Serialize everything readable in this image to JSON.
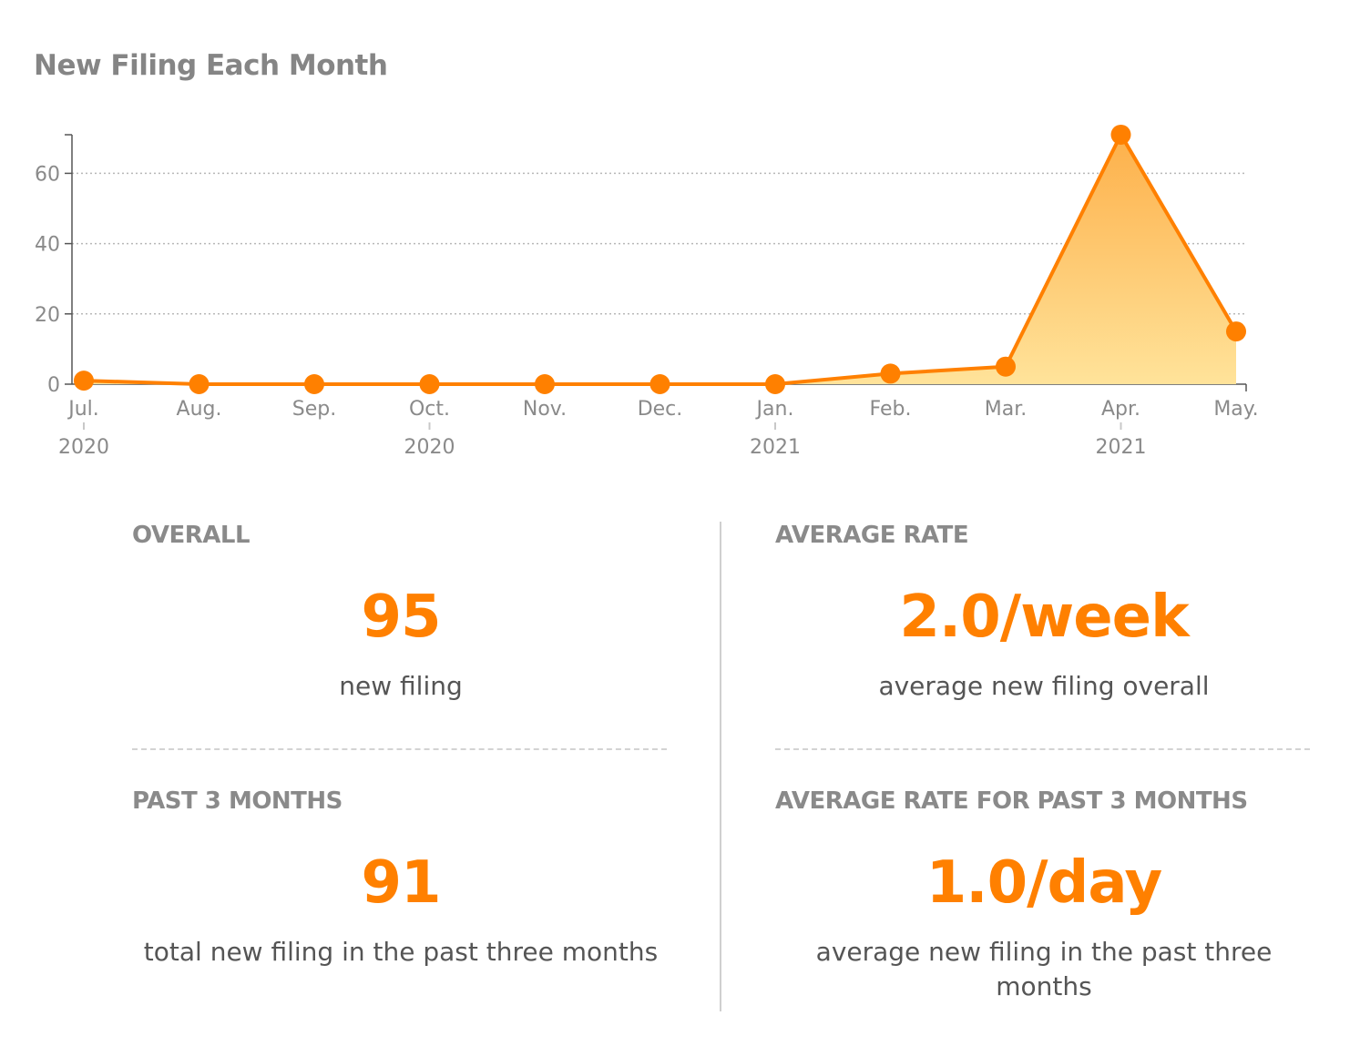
{
  "header": {
    "title": "New Filing Each Month"
  },
  "chart_data": {
    "type": "area",
    "categories": [
      "Jul.",
      "Aug.",
      "Sep.",
      "Oct.",
      "Nov.",
      "Dec.",
      "Jan.",
      "Feb.",
      "Mar.",
      "Apr.",
      "May."
    ],
    "category_years": [
      "2020",
      "",
      "",
      "2020",
      "",
      "",
      "2021",
      "",
      "",
      "2021",
      ""
    ],
    "values": [
      1,
      0,
      0,
      0,
      0,
      0,
      0,
      3,
      5,
      71,
      15
    ],
    "y_ticks": [
      0,
      20,
      40,
      60
    ],
    "ylim": [
      0,
      72
    ],
    "grid": true,
    "color": "#ff8000",
    "fill_top": "#fdb04a",
    "fill_bottom": "#ffe39a"
  },
  "stats": {
    "overall": {
      "label": "OVERALL",
      "value": "95",
      "desc": "new filing"
    },
    "average_rate": {
      "label": "AVERAGE RATE",
      "value": "2.0/week",
      "desc": "average new filing overall"
    },
    "past_3_months": {
      "label": "PAST 3 MONTHS",
      "value": "91",
      "desc": "total new filing in the past three months"
    },
    "average_rate_3_months": {
      "label": "AVERAGE RATE FOR PAST 3 MONTHS",
      "value": "1.0/day",
      "desc": "average new filing in the past three months"
    }
  }
}
